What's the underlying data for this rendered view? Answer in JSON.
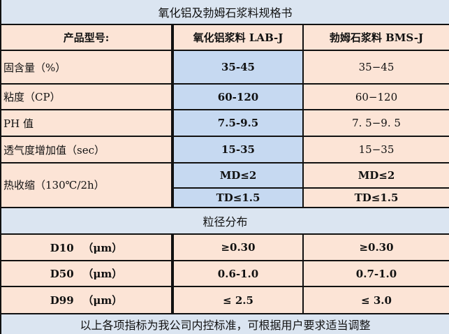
{
  "title": "氧化铝及勃姆石浆料规格书",
  "header": {
    "label": "产品型号:",
    "col1": "氧化铝浆料 LAB-J",
    "col2": "勃姆石浆料 BMS-J"
  },
  "rows": [
    {
      "label": "固含量（%）",
      "v1": "35-45",
      "v2": "35−45"
    },
    {
      "label": "粘度（CP）",
      "v1": "60-120",
      "v2": "60−120"
    },
    {
      "label": "PH 值",
      "v1": "7.5-9.5",
      "v2": "7. 5−9. 5"
    },
    {
      "label": "透气度增加值（sec）",
      "v1": "15-35",
      "v2": "15−35"
    }
  ],
  "shrink": {
    "label": "热收缩（130℃/2h）",
    "md1": "MD≤2",
    "md2": "MD≤2",
    "td1": "TD≤1.5",
    "td2": "TD≤1.5"
  },
  "section": "粒径分布",
  "psd": [
    {
      "label": "D10 　（μm）",
      "v1": "≥0.30",
      "v2": "≥0.30"
    },
    {
      "label": "D50 　（μm）",
      "v1": "0.6-1.0",
      "v2": "0.7-1.0"
    },
    {
      "label": "D99 　（μm）",
      "v1": "≤ 2.5",
      "v2": "≤ 3.0"
    }
  ],
  "footer": "以上各项指标为我公司内控标准，可根据用户要求适当调整"
}
